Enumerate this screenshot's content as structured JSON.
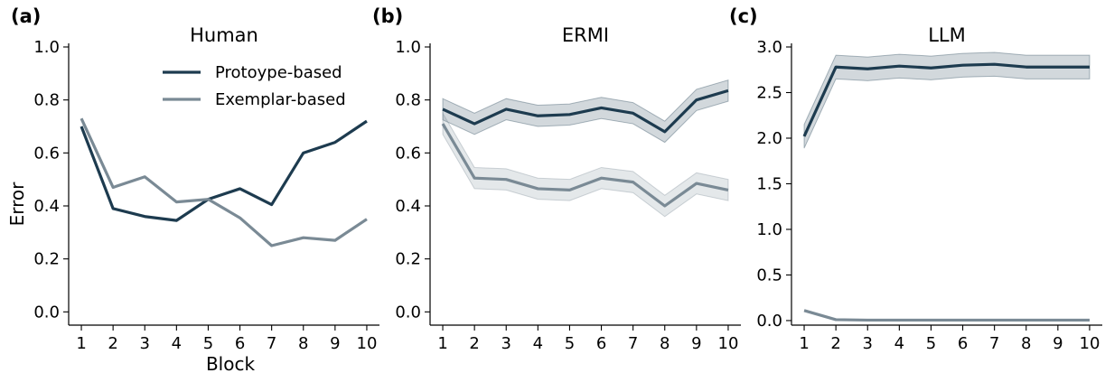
{
  "legend": {
    "entries": [
      {
        "label": "Protoype-based",
        "color": "#1d3b4f"
      },
      {
        "label": "Exemplar-based",
        "color": "#7a8a95"
      }
    ],
    "placement": "top-right of panel (a)"
  },
  "chart_data": [
    {
      "type": "line",
      "panel_label": "(a)",
      "title": "Human",
      "xlabel": "Block",
      "ylabel": "Error",
      "x": [
        1,
        2,
        3,
        4,
        5,
        6,
        7,
        8,
        9,
        10
      ],
      "xlim": [
        0.6,
        10.4
      ],
      "ylim": [
        -0.05,
        1.0
      ],
      "yticks": [
        0.0,
        0.2,
        0.4,
        0.6,
        0.8,
        1.0
      ],
      "ytick_labels": [
        "0.0",
        "0.2",
        "0.4",
        "0.6",
        "0.8",
        "1.0"
      ],
      "grid": false,
      "series": [
        {
          "name": "Protoype-based",
          "color": "#1d3b4f",
          "values": [
            0.7,
            0.39,
            0.36,
            0.345,
            0.425,
            0.465,
            0.405,
            0.6,
            0.64,
            0.72
          ]
        },
        {
          "name": "Exemplar-based",
          "color": "#7a8a95",
          "values": [
            0.73,
            0.47,
            0.51,
            0.415,
            0.425,
            0.355,
            0.25,
            0.28,
            0.27,
            0.35
          ]
        }
      ]
    },
    {
      "type": "line",
      "panel_label": "(b)",
      "title": "ERMI",
      "xlabel": "",
      "ylabel": "",
      "x": [
        1,
        2,
        3,
        4,
        5,
        6,
        7,
        8,
        9,
        10
      ],
      "xlim": [
        0.6,
        10.4
      ],
      "ylim": [
        -0.05,
        1.0
      ],
      "yticks": [
        0.0,
        0.2,
        0.4,
        0.6,
        0.8,
        1.0
      ],
      "ytick_labels": [
        "0.0",
        "0.2",
        "0.4",
        "0.6",
        "0.8",
        "1.0"
      ],
      "grid": false,
      "series": [
        {
          "name": "Protoype-based",
          "color": "#1d3b4f",
          "values": [
            0.765,
            0.71,
            0.765,
            0.74,
            0.745,
            0.77,
            0.75,
            0.68,
            0.8,
            0.835
          ],
          "band": 0.04
        },
        {
          "name": "Exemplar-based",
          "color": "#7a8a95",
          "values": [
            0.71,
            0.505,
            0.5,
            0.465,
            0.46,
            0.505,
            0.49,
            0.4,
            0.485,
            0.46
          ],
          "band": 0.04
        }
      ]
    },
    {
      "type": "line",
      "panel_label": "(c)",
      "title": "LLM",
      "xlabel": "",
      "ylabel": "",
      "x": [
        1,
        2,
        3,
        4,
        5,
        6,
        7,
        8,
        9,
        10
      ],
      "xlim": [
        0.6,
        10.4
      ],
      "ylim": [
        -0.05,
        3.0
      ],
      "yticks": [
        0.0,
        0.5,
        1.0,
        1.5,
        2.0,
        2.5,
        3.0
      ],
      "ytick_labels": [
        "0.0",
        "0.5",
        "1.0",
        "1.5",
        "2.0",
        "2.5",
        "3.0"
      ],
      "grid": false,
      "series": [
        {
          "name": "Protoype-based",
          "color": "#1d3b4f",
          "values": [
            2.02,
            2.78,
            2.76,
            2.79,
            2.77,
            2.8,
            2.81,
            2.78,
            2.78,
            2.78
          ],
          "band": 0.13
        },
        {
          "name": "Exemplar-based",
          "color": "#7a8a95",
          "values": [
            0.11,
            0.01,
            0.005,
            0.005,
            0.005,
            0.005,
            0.005,
            0.005,
            0.005,
            0.005
          ],
          "band": 0.0
        }
      ]
    }
  ]
}
